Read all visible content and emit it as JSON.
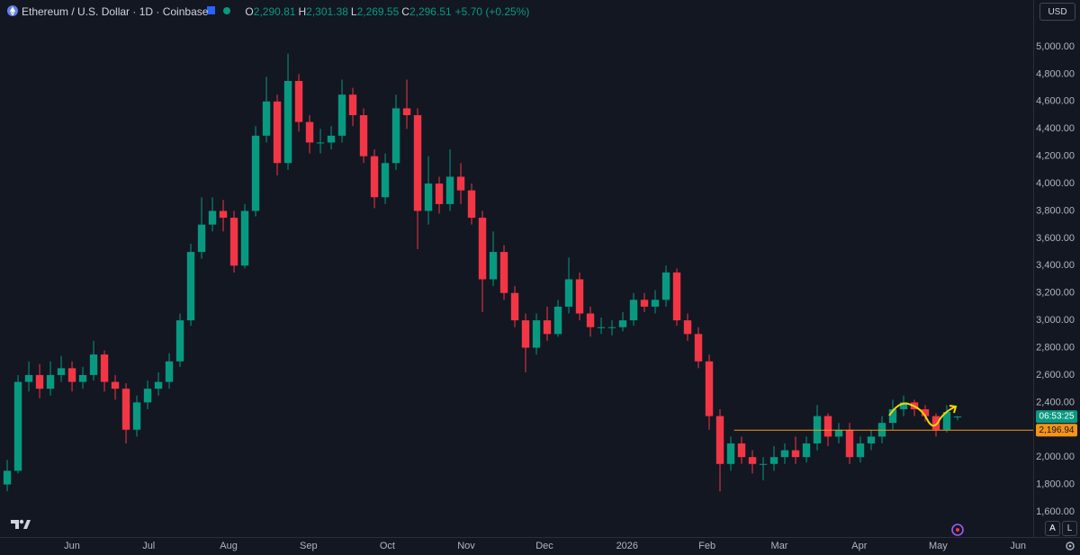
{
  "chart_data": {
    "type": "candlestick",
    "title": "Ethereum / U.S. Dollar · 1D · Coinbase",
    "legend": [
      {
        "key": "O",
        "value": "2,290.81"
      },
      {
        "key": "H",
        "value": "2,301.38"
      },
      {
        "key": "L",
        "value": "2,269.55"
      },
      {
        "key": "C",
        "value": "2,296.51"
      }
    ],
    "change": "+5.70 (+0.25%)",
    "currency": "USD",
    "countdown": "06:53:25",
    "scale_buttons": [
      "A",
      "L"
    ],
    "up_color": "#089981",
    "down_color": "#f23645",
    "open": [
      1800,
      1900,
      2550,
      2600,
      2500,
      2600,
      2650,
      2550,
      2600,
      2750,
      2550,
      2500,
      2200,
      2400,
      2500,
      2550,
      2700,
      3000,
      3500,
      3700,
      3800,
      3750,
      3400,
      3800,
      4350,
      4600,
      4150,
      4750,
      4450,
      4300,
      4300,
      4350,
      4650,
      4500,
      4200,
      3900,
      4150,
      4550,
      4500,
      3800,
      4000,
      3850,
      4050,
      3950,
      3750,
      3300,
      3500,
      3200,
      3000,
      2800,
      3000,
      2900,
      3100,
      3300,
      3050,
      2950,
      2950,
      2950,
      3000,
      3150,
      3100,
      3150,
      3350,
      3000,
      2900,
      2700,
      2300,
      1950,
      2100,
      2000,
      1950,
      1950,
      2000,
      2050,
      2000,
      2100,
      2300,
      2150,
      2200,
      2000,
      2100,
      2150,
      2250,
      2350,
      2400,
      2350,
      2300,
      2200,
      2290.81
    ],
    "high": [
      1980,
      2600,
      2700,
      2680,
      2700,
      2740,
      2700,
      2660,
      2850,
      2780,
      2600,
      2540,
      2450,
      2560,
      2620,
      2760,
      3050,
      3560,
      3900,
      3900,
      3880,
      3800,
      3850,
      4420,
      4780,
      4650,
      4950,
      4800,
      4500,
      4400,
      4420,
      4760,
      4700,
      4550,
      4250,
      4220,
      4650,
      4760,
      4550,
      4200,
      4050,
      4250,
      4150,
      4000,
      3800,
      3650,
      3550,
      3250,
      3050,
      3050,
      3100,
      3150,
      3460,
      3350,
      3100,
      3020,
      3000,
      3060,
      3200,
      3200,
      3220,
      3400,
      3380,
      3050,
      2950,
      2750,
      2350,
      2150,
      2150,
      2050,
      2000,
      2080,
      2100,
      2150,
      2150,
      2380,
      2320,
      2250,
      2250,
      2150,
      2200,
      2300,
      2420,
      2450,
      2420,
      2380,
      2320,
      2380,
      2301.38
    ],
    "low": [
      1750,
      1880,
      2480,
      2430,
      2450,
      2550,
      2480,
      2500,
      2560,
      2480,
      2420,
      2100,
      2150,
      2350,
      2450,
      2500,
      2660,
      2960,
      3450,
      3650,
      3650,
      3350,
      3380,
      3760,
      4300,
      4060,
      4100,
      4380,
      4220,
      4220,
      4250,
      4300,
      4420,
      4150,
      3820,
      3850,
      4100,
      4400,
      3520,
      3700,
      3780,
      3800,
      3850,
      3700,
      3060,
      3250,
      3150,
      2950,
      2620,
      2750,
      2850,
      2880,
      3050,
      3000,
      2880,
      2900,
      2890,
      2920,
      2960,
      3060,
      3050,
      3100,
      2960,
      2850,
      2650,
      2200,
      1750,
      1900,
      1950,
      1880,
      1830,
      1900,
      1950,
      1950,
      1960,
      2050,
      2080,
      2100,
      1950,
      1960,
      2050,
      2100,
      2200,
      2300,
      2300,
      2260,
      2150,
      2180,
      2269.55
    ],
    "close": [
      1900,
      2550,
      2600,
      2500,
      2600,
      2650,
      2550,
      2600,
      2750,
      2550,
      2500,
      2200,
      2400,
      2500,
      2550,
      2700,
      3000,
      3500,
      3700,
      3800,
      3750,
      3400,
      3800,
      4350,
      4600,
      4150,
      4750,
      4450,
      4300,
      4300,
      4350,
      4650,
      4500,
      4200,
      3900,
      4150,
      4550,
      4500,
      3800,
      4000,
      3850,
      4050,
      3950,
      3750,
      3300,
      3500,
      3200,
      3000,
      2800,
      3000,
      2900,
      3100,
      3300,
      3050,
      2950,
      2950,
      2950,
      3000,
      3150,
      3100,
      3150,
      3350,
      3000,
      2900,
      2700,
      2300,
      1950,
      2100,
      2000,
      1950,
      1950,
      2000,
      2050,
      2000,
      2100,
      2300,
      2150,
      2200,
      2000,
      2100,
      2150,
      2250,
      2350,
      2400,
      2350,
      2300,
      2200,
      2330,
      2296.51
    ],
    "xlim": [
      -0.67,
      95
    ],
    "xticks": [
      {
        "value": 6,
        "label": "Jun"
      },
      {
        "value": 13.1,
        "label": "Jul"
      },
      {
        "value": 20.5,
        "label": "Aug"
      },
      {
        "value": 27.9,
        "label": "Sep"
      },
      {
        "value": 35.2,
        "label": "Oct"
      },
      {
        "value": 42.5,
        "label": "Nov"
      },
      {
        "value": 49.75,
        "label": "Dec"
      },
      {
        "value": 57.4,
        "label": "2026"
      },
      {
        "value": 64.8,
        "label": "Feb"
      },
      {
        "value": 71.5,
        "label": "Mar"
      },
      {
        "value": 78.9,
        "label": "Apr"
      },
      {
        "value": 86.2,
        "label": "May"
      },
      {
        "value": 93.6,
        "label": "Jun"
      }
    ],
    "ylim": [
      1429,
      5342
    ],
    "yticks": [
      {
        "value": 1600,
        "label": "1,600.00"
      },
      {
        "value": 1800,
        "label": "1,800.00"
      },
      {
        "value": 2000,
        "label": "2,000.00"
      },
      {
        "value": 2200,
        "label": "2,200.00"
      },
      {
        "value": 2400,
        "label": "2,400.00"
      },
      {
        "value": 2600,
        "label": "2,600.00"
      },
      {
        "value": 2800,
        "label": "2,800.00"
      },
      {
        "value": 3000,
        "label": "3,000.00"
      },
      {
        "value": 3200,
        "label": "3,200.00"
      },
      {
        "value": 3400,
        "label": "3,400.00"
      },
      {
        "value": 3600,
        "label": "3,600.00"
      },
      {
        "value": 3800,
        "label": "3,800.00"
      },
      {
        "value": 4000,
        "label": "4,000.00"
      },
      {
        "value": 4200,
        "label": "4,200.00"
      },
      {
        "value": 4400,
        "label": "4,400.00"
      },
      {
        "value": 4600,
        "label": "4,600.00"
      },
      {
        "value": 4800,
        "label": "4,800.00"
      },
      {
        "value": 5000,
        "label": "5,000.00"
      }
    ],
    "grid": false,
    "hline": {
      "value": 2196.94,
      "label": "2,196.94",
      "color": "#f7931a",
      "start": 67.3
    }
  }
}
